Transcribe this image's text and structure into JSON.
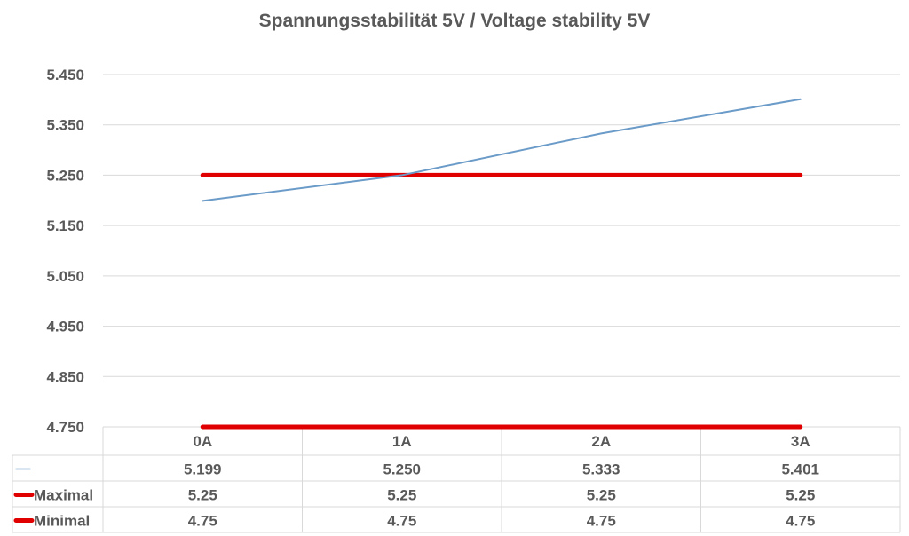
{
  "chart_data": {
    "type": "line",
    "title": "Spannungsstabilität 5V / Voltage stability 5V",
    "categories": [
      "0A",
      "1A",
      "2A",
      "3A"
    ],
    "ylim": [
      4.75,
      5.45
    ],
    "yticks": [
      "5.450",
      "5.350",
      "5.250",
      "5.150",
      "5.050",
      "4.950",
      "4.850",
      "4.750"
    ],
    "ytick_values": [
      5.45,
      5.35,
      5.25,
      5.15,
      5.05,
      4.95,
      4.85,
      4.75
    ],
    "grid": true,
    "legend": "data-table",
    "series": [
      {
        "name": "",
        "values": [
          5.199,
          5.25,
          5.333,
          5.401
        ],
        "labels": [
          "5.199",
          "5.250",
          "5.333",
          "5.401"
        ],
        "color": "#6b9bc8"
      },
      {
        "name": "Maximal",
        "values": [
          5.25,
          5.25,
          5.25,
          5.25
        ],
        "labels": [
          "5.25",
          "5.25",
          "5.25",
          "5.25"
        ],
        "color": "#e00000"
      },
      {
        "name": "Minimal",
        "values": [
          4.75,
          4.75,
          4.75,
          4.75
        ],
        "labels": [
          "4.75",
          "4.75",
          "4.75",
          "4.75"
        ],
        "color": "#e00000"
      }
    ]
  }
}
